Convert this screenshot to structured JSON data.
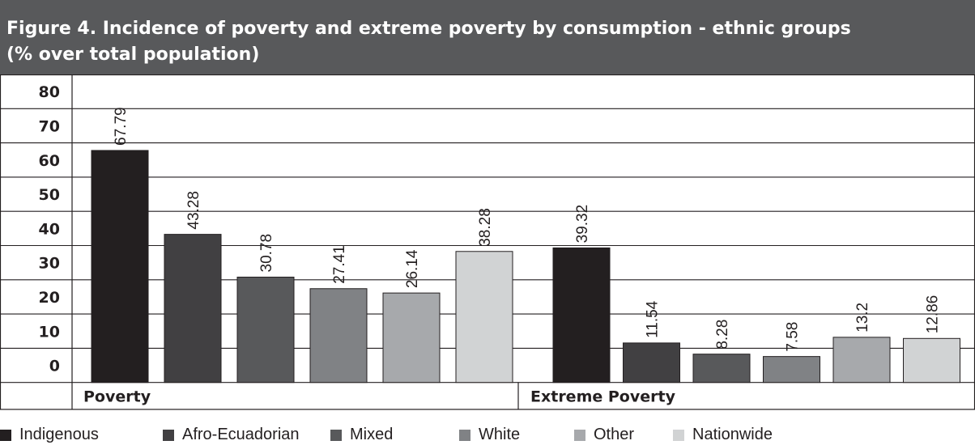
{
  "title": "Figure 4. Incidence of poverty and extreme poverty by consumption - ethnic groups\n(% over total population)",
  "chart_data": {
    "type": "bar",
    "title": "Figure 4. Incidence of poverty and extreme poverty by consumption - ethnic groups (% over total population)",
    "categories": [
      "Poverty",
      "Extreme Poverty"
    ],
    "series": [
      {
        "name": "Indigenous",
        "values": [
          67.79,
          39.32
        ],
        "color": "#231f20"
      },
      {
        "name": "Afro-Ecuadorian",
        "values": [
          43.28,
          11.54
        ],
        "color": "#414042"
      },
      {
        "name": "Mixed",
        "values": [
          30.78,
          8.28
        ],
        "color": "#58595b"
      },
      {
        "name": "White",
        "values": [
          27.41,
          7.58
        ],
        "color": "#808285"
      },
      {
        "name": "Other",
        "values": [
          26.14,
          13.2
        ],
        "color": "#a7a9ac"
      },
      {
        "name": "Nationwide",
        "values": [
          38.28,
          12.86
        ],
        "color": "#d1d3d4"
      }
    ],
    "y_ticks": [
      80,
      70,
      60,
      50,
      40,
      30,
      20,
      10,
      0
    ],
    "ylim": [
      0,
      80
    ],
    "grid": true,
    "legend_position": "bottom",
    "xlabel": "",
    "ylabel": ""
  }
}
